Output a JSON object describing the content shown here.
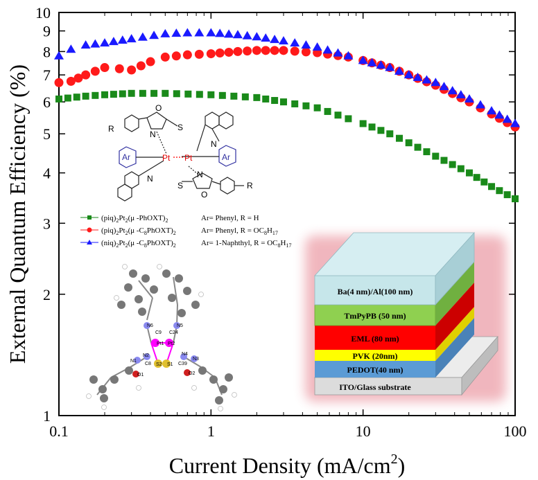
{
  "chart_data": {
    "type": "scatter",
    "xlabel": "Current Density (mA/cm",
    "xlabel_sup": "2",
    "xlabel_end": ")",
    "ylabel": "External Quantum Efficiency (%)",
    "x_scale": "log",
    "y_scale": "log",
    "xlim": [
      0.1,
      100
    ],
    "ylim": [
      1,
      10
    ],
    "x_ticks": [
      0.1,
      1,
      10,
      100
    ],
    "x_tick_labels": [
      "0.1",
      "1",
      "10",
      "100"
    ],
    "y_ticks": [
      1,
      2,
      3,
      4,
      5,
      6,
      7,
      8,
      9,
      10
    ],
    "y_tick_labels": [
      "1",
      "2",
      "3",
      "4",
      "5",
      "6",
      "7",
      "8",
      "9",
      "10"
    ],
    "legend_position": "middle-left",
    "series": [
      {
        "name": "(piq)2Pt2(μ -PhOXT)2",
        "ar": "Ar= Phenyl, R = H",
        "marker": "square",
        "color": "#1a8a1a",
        "x": [
          0.1,
          0.15,
          0.2,
          0.3,
          0.5,
          1,
          2,
          3,
          5,
          8,
          10,
          15,
          20,
          30,
          50,
          70,
          100
        ],
        "y": [
          6.1,
          6.2,
          6.25,
          6.3,
          6.3,
          6.25,
          6.15,
          6.0,
          5.8,
          5.45,
          5.3,
          5.0,
          4.75,
          4.4,
          4.0,
          3.7,
          3.45
        ]
      },
      {
        "name": "(piq)2Pt2(μ -C8PhOXT)2",
        "ar": "Ar= Phenyl, R = OC8H17",
        "marker": "circle",
        "color": "#ff1a1a",
        "x": [
          0.1,
          0.12,
          0.15,
          0.2,
          0.25,
          0.3,
          0.4,
          0.5,
          0.7,
          1,
          1.5,
          2,
          3,
          5,
          8,
          10,
          15,
          20,
          30,
          50,
          70,
          100
        ],
        "y": [
          6.7,
          6.75,
          7.0,
          7.3,
          7.25,
          7.2,
          7.55,
          7.75,
          7.85,
          7.9,
          8.0,
          8.05,
          8.05,
          7.95,
          7.75,
          7.6,
          7.3,
          7.0,
          6.6,
          6.0,
          5.6,
          5.2
        ]
      },
      {
        "name": "(niq)2Pt2(μ -C8PhOXT)2",
        "ar": "Ar= 1-Naphthyl, R = OC8H17",
        "marker": "triangle",
        "color": "#1a1aff",
        "x": [
          0.1,
          0.12,
          0.15,
          0.2,
          0.3,
          0.5,
          0.7,
          1,
          1.5,
          2,
          3,
          5,
          8,
          10,
          15,
          20,
          30,
          50,
          70,
          100
        ],
        "y": [
          7.8,
          8.1,
          8.3,
          8.4,
          8.6,
          8.85,
          8.9,
          8.9,
          8.8,
          8.7,
          8.5,
          8.2,
          7.8,
          7.6,
          7.3,
          7.0,
          6.7,
          6.1,
          5.7,
          5.3
        ]
      }
    ]
  },
  "legend": {
    "items": [
      {
        "pre": "(piq)",
        "s1": "2",
        "mid": "Pt",
        "s2": "2",
        "tail": "(μ -PhOXT)",
        "s3": "2",
        "ar": "Ar= Phenyl, R = H",
        "color": "#1a8a1a"
      },
      {
        "pre": "(piq)",
        "s1": "2",
        "mid": "Pt",
        "s2": "2",
        "tail": "(μ -C",
        "s8": "8",
        "tail2": "PhOXT)",
        "s3": "2",
        "ar_pre": "Ar= Phenyl, R = OC",
        "ar_s1": "8",
        "ar_mid": "H",
        "ar_s2": "17",
        "color": "#ff1a1a"
      },
      {
        "pre": "(niq)",
        "s1": "2",
        "mid": "Pt",
        "s2": "2",
        "tail": "(μ -C",
        "s8": "8",
        "tail2": "PhOXT)",
        "s3": "2",
        "ar_pre": "Ar= 1-Naphthyl, R = OC",
        "ar_s1": "8",
        "ar_mid": "H",
        "ar_s2": "17",
        "color": "#1a1aff"
      }
    ]
  },
  "structure": {
    "labels": {
      "r": "R",
      "o": "O",
      "n": "N",
      "s": "S",
      "pt": "Pt",
      "ar": "Ar"
    }
  },
  "device": {
    "layers": [
      {
        "label": "Ba(4 nm)/Al(100 nm)",
        "color": "#c6e6ea"
      },
      {
        "label": "TmPyPB (50 nm)",
        "color": "#8fd050"
      },
      {
        "label": "EML (80 nm)",
        "color": "#ff0000"
      },
      {
        "label": "PVK (20nm)",
        "color": "#ffff00"
      },
      {
        "label": "PEDOT(40 nm)",
        "color": "#5b9bd5"
      },
      {
        "label": "ITO/Glass substrate",
        "color": "#dcdcdc"
      }
    ]
  },
  "crystal": {
    "atom_labels": [
      "N6",
      "N5",
      "C9",
      "C24",
      "Pt1",
      "Pt2",
      "N1",
      "N2",
      "N4",
      "N3",
      "C8",
      "S2",
      "S1",
      "C39",
      "O1",
      "O2"
    ]
  }
}
